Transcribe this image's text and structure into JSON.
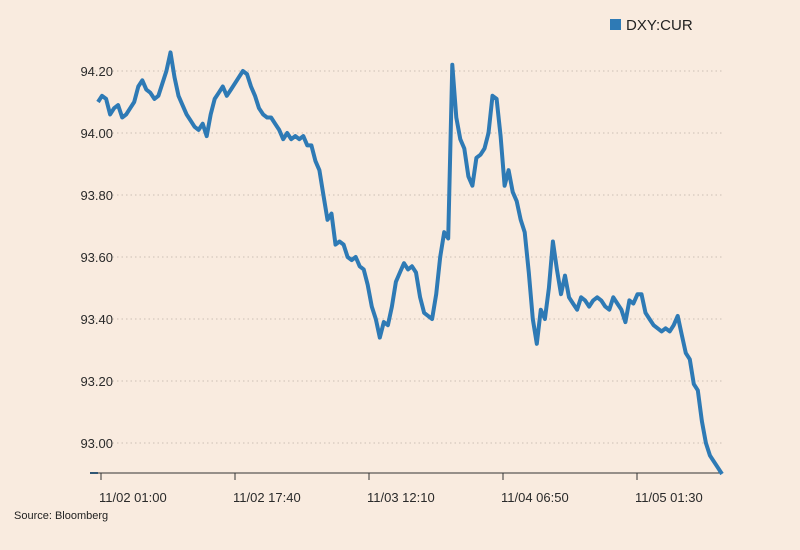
{
  "chart_data": {
    "type": "line",
    "title": "",
    "xlabel": "",
    "ylabel": "",
    "x_tick_labels": [
      "11/02 01:00",
      "11/02 17:40",
      "11/03 12:10",
      "11/04 06:50",
      "11/05 01:30"
    ],
    "y_tick_labels": [
      "93.00",
      "93.20",
      "93.40",
      "93.60",
      "93.80",
      "94.00",
      "94.20"
    ],
    "y_ticks": [
      93.0,
      93.2,
      93.4,
      93.6,
      93.8,
      94.0,
      94.2
    ],
    "ylim": [
      92.9,
      94.3
    ],
    "grid": "horizontal dotted",
    "legend_position": "top-right",
    "series": [
      {
        "name": "DXY:CUR",
        "color": "#2e7ab5",
        "values": [
          94.1,
          94.12,
          94.11,
          94.06,
          94.08,
          94.09,
          94.05,
          94.06,
          94.08,
          94.1,
          94.15,
          94.17,
          94.14,
          94.13,
          94.11,
          94.12,
          94.16,
          94.2,
          94.26,
          94.18,
          94.12,
          94.09,
          94.06,
          94.04,
          94.02,
          94.01,
          94.03,
          93.99,
          94.06,
          94.11,
          94.13,
          94.15,
          94.12,
          94.14,
          94.16,
          94.18,
          94.2,
          94.19,
          94.15,
          94.12,
          94.08,
          94.06,
          94.05,
          94.05,
          94.03,
          94.01,
          93.98,
          94.0,
          93.98,
          93.99,
          93.98,
          93.99,
          93.96,
          93.96,
          93.91,
          93.88,
          93.8,
          93.72,
          93.74,
          93.64,
          93.65,
          93.64,
          93.6,
          93.59,
          93.6,
          93.57,
          93.56,
          93.51,
          93.44,
          93.4,
          93.34,
          93.39,
          93.38,
          93.44,
          93.52,
          93.55,
          93.58,
          93.56,
          93.57,
          93.55,
          93.47,
          93.42,
          93.41,
          93.4,
          93.48,
          93.6,
          93.68,
          93.66,
          94.22,
          94.05,
          93.98,
          93.95,
          93.86,
          93.83,
          93.92,
          93.93,
          93.95,
          94.0,
          94.12,
          94.11,
          93.99,
          93.83,
          93.88,
          93.81,
          93.78,
          93.72,
          93.68,
          93.55,
          93.4,
          93.32,
          93.43,
          93.4,
          93.5,
          93.65,
          93.56,
          93.48,
          93.54,
          93.47,
          93.45,
          93.43,
          93.47,
          93.46,
          93.44,
          93.46,
          93.47,
          93.46,
          93.44,
          93.43,
          93.47,
          93.45,
          93.43,
          93.39,
          93.46,
          93.45,
          93.48,
          93.48,
          93.42,
          93.4,
          93.38,
          93.37,
          93.36,
          93.37,
          93.36,
          93.38,
          93.41,
          93.35,
          93.29,
          93.27,
          93.19,
          93.17,
          93.07,
          93.0,
          92.96,
          92.94,
          92.92,
          92.9
        ]
      }
    ]
  },
  "legend": {
    "series_label": "DXY:CUR",
    "swatch_color": "#2e7ab5"
  },
  "source": "Source: Bloomberg",
  "colors": {
    "background": "#f9ebdf",
    "line": "#2e7ab5",
    "grid": "#cbbfb4",
    "axis": "#333333"
  }
}
